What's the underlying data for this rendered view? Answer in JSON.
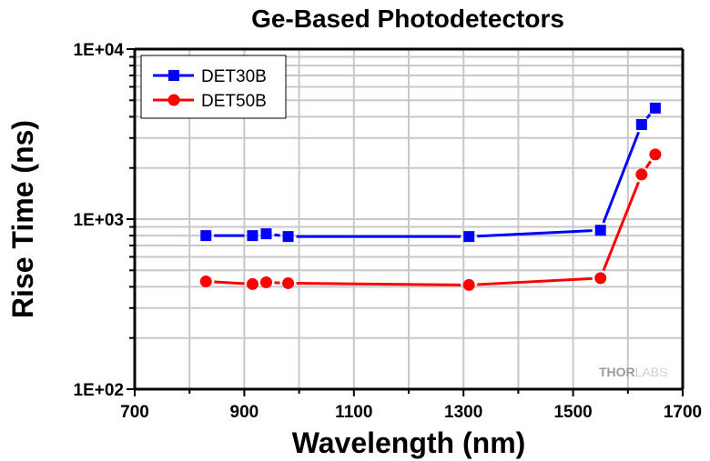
{
  "chart_data": {
    "type": "line",
    "title": "Ge-Based Photodetectors",
    "xlabel": "Wavelength (nm)",
    "ylabel": "Rise Time (ns)",
    "xlim": [
      700,
      1700
    ],
    "ylim": [
      100,
      10000
    ],
    "yscale": "log",
    "xticks": [
      700,
      900,
      1100,
      1300,
      1500,
      1700
    ],
    "xtick_labels": [
      "700",
      "900",
      "1100",
      "1300",
      "1500",
      "1700"
    ],
    "yticks": [
      100,
      1000,
      10000
    ],
    "ytick_labels": [
      "1E+02",
      "1E+03",
      "1E+04"
    ],
    "grid": true,
    "legend_position": "top-left",
    "series": [
      {
        "name": "DET30B",
        "color": "#0000ff",
        "marker": "square",
        "x": [
          830,
          915,
          940,
          980,
          1310,
          1550,
          1625,
          1650
        ],
        "y": [
          800,
          800,
          820,
          790,
          790,
          860,
          3600,
          4500
        ]
      },
      {
        "name": "DET50B",
        "color": "#ff0000",
        "marker": "circle",
        "x": [
          830,
          915,
          940,
          980,
          1310,
          1550,
          1625,
          1650
        ],
        "y": [
          430,
          415,
          425,
          420,
          410,
          450,
          1830,
          2400
        ]
      }
    ],
    "watermark": {
      "text_dark": "THOR",
      "text_light": "LABS"
    }
  }
}
